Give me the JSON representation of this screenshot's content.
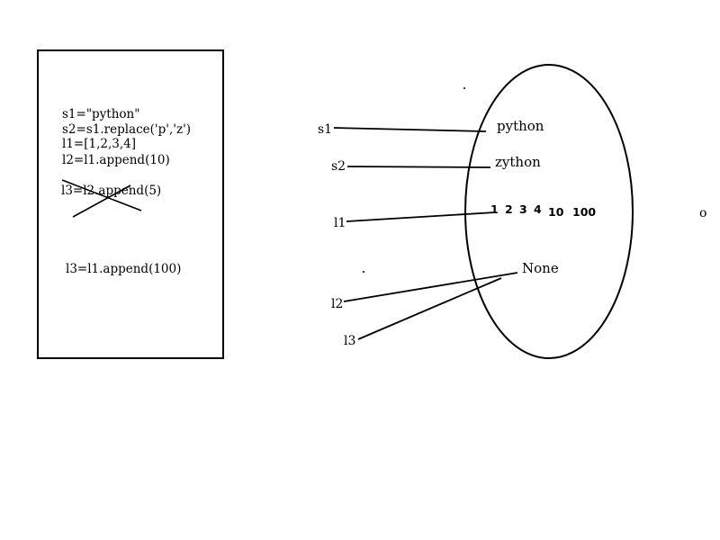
{
  "code_box": {
    "lines": [
      "s1=\"python\"",
      "s2=s1.replace('p','z')",
      "l1=[1,2,3,4]",
      "l2=l1.append(10)",
      "l3=l2.append(5)",
      "l3=l1.append(100)"
    ]
  },
  "variables": {
    "s1": "s1",
    "s2": "s2",
    "l1": "l1",
    "l2": "l2",
    "l3": "l3"
  },
  "objects": {
    "python": "python",
    "zython": "zython",
    "list_items": [
      "1",
      "2",
      "3",
      "4",
      "10",
      "100"
    ],
    "none": "None"
  },
  "stray_mark": "o",
  "colors": {
    "ink": "#000000",
    "background": "#ffffff"
  }
}
